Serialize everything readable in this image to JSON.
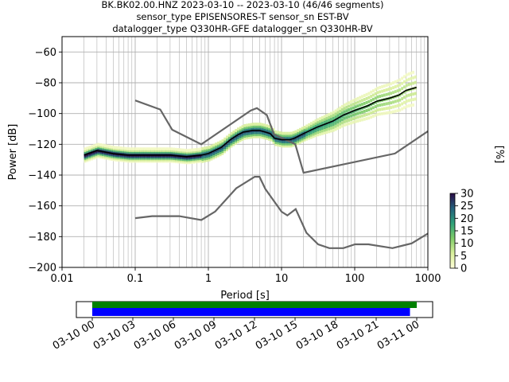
{
  "figure": {
    "title_lines": [
      "BK.BK02.00.HNZ   2023-03-10 -- 2023-03-10  (46/46 segments)",
      "sensor_type EPISENSORES-T sensor_sn EST-BV",
      "datalogger_type Q330HR-GFE datalogger_sn Q330HR-BV"
    ]
  },
  "chart_data": [
    {
      "type": "heatmap",
      "title": "BK.BK02.00.HNZ   2023-03-10 -- 2023-03-10  (46/46 segments)",
      "xlabel": "Period [s]",
      "ylabel": "Power [dB]",
      "x_scale": "log",
      "xlim": [
        0.01,
        1000
      ],
      "ylim": [
        -200,
        -50
      ],
      "x_ticks": [
        0.01,
        0.1,
        1,
        10,
        100,
        1000
      ],
      "x_tick_labels": [
        "0.01",
        "0.1",
        "1",
        "10",
        "100",
        "1000"
      ],
      "y_ticks": [
        -200,
        -180,
        -160,
        -140,
        -120,
        -100,
        -80,
        -60
      ],
      "y_tick_labels": [
        "−200",
        "−180",
        "−160",
        "−140",
        "−120",
        "−100",
        "−80",
        "−60"
      ],
      "grid": true,
      "median": {
        "period": [
          0.02,
          0.03,
          0.05,
          0.08,
          0.15,
          0.3,
          0.5,
          0.8,
          1.0,
          1.5,
          2.0,
          2.5,
          3.0,
          4.0,
          5.0,
          6.0,
          7.0,
          8.0,
          10,
          13,
          15,
          20,
          30,
          50,
          70,
          100,
          150,
          200,
          300,
          400,
          500,
          700
        ],
        "power": [
          -127,
          -124,
          -126,
          -127,
          -127,
          -127,
          -128,
          -127,
          -126,
          -122,
          -117,
          -114,
          -112,
          -111,
          -111,
          -112,
          -113,
          -116,
          -117,
          -117,
          -116,
          -113,
          -109,
          -105,
          -101,
          -98,
          -95,
          -92,
          -90,
          -88,
          -85,
          -83
        ]
      },
      "nhnm": {
        "period": [
          0.1,
          0.22,
          0.32,
          0.8,
          3.8,
          4.6,
          6.3,
          7.9,
          15.4,
          20.0,
          354.8,
          1000
        ],
        "power": [
          -91.5,
          -97.4,
          -110.5,
          -120.0,
          -98.0,
          -96.5,
          -101.0,
          -113.5,
          -120.0,
          -138.5,
          -126.0,
          -111.5
        ]
      },
      "nlnm": {
        "period": [
          0.1,
          0.17,
          0.4,
          0.8,
          1.24,
          2.4,
          4.3,
          5.0,
          6.0,
          10.0,
          12.0,
          15.6,
          21.9,
          31.6,
          45.0,
          70.0,
          101.0,
          154.0,
          328.0,
          600.0,
          1000
        ],
        "power": [
          -168.0,
          -166.7,
          -166.7,
          -169.2,
          -163.7,
          -148.6,
          -141.1,
          -141.1,
          -149.0,
          -163.8,
          -166.2,
          -162.1,
          -177.5,
          -185.0,
          -187.5,
          -187.5,
          -185.0,
          -185.0,
          -187.5,
          -184.4,
          -178.0
        ]
      },
      "colorbar": {
        "label": "[%]",
        "range": [
          0,
          30
        ],
        "ticks": [
          0,
          5,
          10,
          15,
          20,
          25,
          30
        ],
        "tick_labels": [
          "0",
          "5",
          "10",
          "15",
          "20",
          "25",
          "30"
        ]
      }
    },
    {
      "type": "bar",
      "title": "",
      "xlim": [
        "03-10 00",
        "03-11 00"
      ],
      "x_tick_labels": [
        "03-10 00",
        "03-10 03",
        "03-10 06",
        "03-10 09",
        "03-10 12",
        "03-10 15",
        "03-10 18",
        "03-10 21",
        "03-11 00"
      ],
      "series": [
        {
          "color": "#008000",
          "start_hours": 0,
          "end_hours": 24.0
        },
        {
          "color": "#0000ff",
          "start_hours": 0,
          "end_hours": 23.5
        }
      ]
    }
  ],
  "colors": {
    "median": "#000000",
    "noise_models": "#666666",
    "grid": "#b0b0b0"
  }
}
